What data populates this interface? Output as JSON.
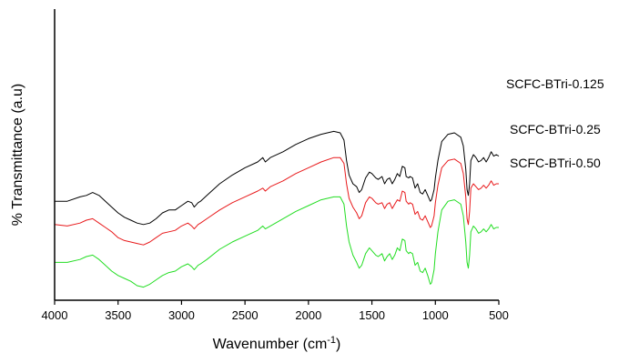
{
  "chart_data": {
    "type": "line",
    "title": "",
    "xlabel": "Wavenumber (cm",
    "xlabel_sup": "-1",
    "xlabel_tail": ")",
    "ylabel": "% Transmittance (a.u)",
    "xlim": [
      4000,
      500
    ],
    "x_reversed": true,
    "x_ticks": [
      4000,
      3500,
      3000,
      2500,
      2000,
      1500,
      1000,
      500
    ],
    "x_tick_labels": [
      "4000",
      "3500",
      "3000",
      "2500",
      "2000",
      "1500",
      "1000",
      "500"
    ],
    "y_ticks_shown": false,
    "grid": false,
    "series": [
      {
        "name": "SCFC-BTri-0.125",
        "color": "#000000",
        "points": [
          [
            4000,
            0.66
          ],
          [
            3900,
            0.66
          ],
          [
            3800,
            0.645
          ],
          [
            3750,
            0.64
          ],
          [
            3700,
            0.63
          ],
          [
            3650,
            0.64
          ],
          [
            3600,
            0.66
          ],
          [
            3550,
            0.68
          ],
          [
            3500,
            0.7
          ],
          [
            3450,
            0.715
          ],
          [
            3400,
            0.725
          ],
          [
            3350,
            0.735
          ],
          [
            3300,
            0.74
          ],
          [
            3250,
            0.735
          ],
          [
            3200,
            0.72
          ],
          [
            3150,
            0.7
          ],
          [
            3100,
            0.69
          ],
          [
            3050,
            0.69
          ],
          [
            3000,
            0.675
          ],
          [
            2950,
            0.66
          ],
          [
            2920,
            0.665
          ],
          [
            2900,
            0.68
          ],
          [
            2870,
            0.665
          ],
          [
            2850,
            0.66
          ],
          [
            2800,
            0.64
          ],
          [
            2700,
            0.6
          ],
          [
            2600,
            0.57
          ],
          [
            2500,
            0.545
          ],
          [
            2400,
            0.525
          ],
          [
            2360,
            0.51
          ],
          [
            2340,
            0.525
          ],
          [
            2300,
            0.51
          ],
          [
            2200,
            0.49
          ],
          [
            2100,
            0.465
          ],
          [
            2000,
            0.445
          ],
          [
            1900,
            0.43
          ],
          [
            1800,
            0.42
          ],
          [
            1750,
            0.425
          ],
          [
            1720,
            0.45
          ],
          [
            1700,
            0.52
          ],
          [
            1680,
            0.57
          ],
          [
            1650,
            0.6
          ],
          [
            1620,
            0.61
          ],
          [
            1600,
            0.63
          ],
          [
            1580,
            0.62
          ],
          [
            1550,
            0.58
          ],
          [
            1520,
            0.56
          ],
          [
            1500,
            0.565
          ],
          [
            1470,
            0.58
          ],
          [
            1450,
            0.585
          ],
          [
            1420,
            0.575
          ],
          [
            1400,
            0.6
          ],
          [
            1380,
            0.585
          ],
          [
            1360,
            0.58
          ],
          [
            1340,
            0.6
          ],
          [
            1320,
            0.585
          ],
          [
            1300,
            0.565
          ],
          [
            1280,
            0.575
          ],
          [
            1260,
            0.54
          ],
          [
            1240,
            0.545
          ],
          [
            1230,
            0.575
          ],
          [
            1210,
            0.58
          ],
          [
            1200,
            0.575
          ],
          [
            1180,
            0.58
          ],
          [
            1160,
            0.615
          ],
          [
            1140,
            0.6
          ],
          [
            1120,
            0.63
          ],
          [
            1100,
            0.635
          ],
          [
            1080,
            0.62
          ],
          [
            1060,
            0.64
          ],
          [
            1040,
            0.66
          ],
          [
            1030,
            0.655
          ],
          [
            1010,
            0.62
          ],
          [
            1000,
            0.58
          ],
          [
            980,
            0.52
          ],
          [
            950,
            0.455
          ],
          [
            900,
            0.43
          ],
          [
            850,
            0.425
          ],
          [
            800,
            0.44
          ],
          [
            780,
            0.47
          ],
          [
            760,
            0.55
          ],
          [
            750,
            0.62
          ],
          [
            740,
            0.64
          ],
          [
            730,
            0.6
          ],
          [
            720,
            0.52
          ],
          [
            700,
            0.5
          ],
          [
            680,
            0.51
          ],
          [
            660,
            0.525
          ],
          [
            640,
            0.52
          ],
          [
            620,
            0.51
          ],
          [
            600,
            0.525
          ],
          [
            580,
            0.51
          ],
          [
            560,
            0.49
          ],
          [
            540,
            0.505
          ],
          [
            520,
            0.5
          ],
          [
            500,
            0.505
          ]
        ]
      },
      {
        "name": "SCFC-BTri-0.25",
        "color": "#e8191b",
        "points": [
          [
            4000,
            0.74
          ],
          [
            3900,
            0.745
          ],
          [
            3800,
            0.735
          ],
          [
            3750,
            0.725
          ],
          [
            3700,
            0.72
          ],
          [
            3650,
            0.735
          ],
          [
            3600,
            0.75
          ],
          [
            3550,
            0.765
          ],
          [
            3500,
            0.785
          ],
          [
            3450,
            0.795
          ],
          [
            3400,
            0.8
          ],
          [
            3350,
            0.805
          ],
          [
            3300,
            0.81
          ],
          [
            3250,
            0.8
          ],
          [
            3200,
            0.785
          ],
          [
            3150,
            0.77
          ],
          [
            3100,
            0.765
          ],
          [
            3050,
            0.76
          ],
          [
            3000,
            0.745
          ],
          [
            2950,
            0.735
          ],
          [
            2920,
            0.745
          ],
          [
            2900,
            0.755
          ],
          [
            2870,
            0.74
          ],
          [
            2850,
            0.735
          ],
          [
            2800,
            0.72
          ],
          [
            2700,
            0.69
          ],
          [
            2600,
            0.665
          ],
          [
            2500,
            0.645
          ],
          [
            2400,
            0.625
          ],
          [
            2360,
            0.615
          ],
          [
            2340,
            0.625
          ],
          [
            2300,
            0.61
          ],
          [
            2200,
            0.59
          ],
          [
            2100,
            0.565
          ],
          [
            2000,
            0.545
          ],
          [
            1900,
            0.525
          ],
          [
            1800,
            0.51
          ],
          [
            1750,
            0.51
          ],
          [
            1720,
            0.53
          ],
          [
            1700,
            0.6
          ],
          [
            1680,
            0.65
          ],
          [
            1650,
            0.68
          ],
          [
            1620,
            0.7
          ],
          [
            1600,
            0.72
          ],
          [
            1580,
            0.71
          ],
          [
            1550,
            0.665
          ],
          [
            1520,
            0.645
          ],
          [
            1500,
            0.65
          ],
          [
            1470,
            0.665
          ],
          [
            1450,
            0.67
          ],
          [
            1420,
            0.665
          ],
          [
            1400,
            0.685
          ],
          [
            1380,
            0.67
          ],
          [
            1360,
            0.665
          ],
          [
            1340,
            0.685
          ],
          [
            1320,
            0.67
          ],
          [
            1300,
            0.655
          ],
          [
            1280,
            0.66
          ],
          [
            1260,
            0.625
          ],
          [
            1240,
            0.63
          ],
          [
            1230,
            0.66
          ],
          [
            1210,
            0.67
          ],
          [
            1200,
            0.665
          ],
          [
            1180,
            0.67
          ],
          [
            1160,
            0.705
          ],
          [
            1140,
            0.695
          ],
          [
            1120,
            0.72
          ],
          [
            1100,
            0.725
          ],
          [
            1080,
            0.71
          ],
          [
            1060,
            0.73
          ],
          [
            1040,
            0.75
          ],
          [
            1030,
            0.745
          ],
          [
            1010,
            0.71
          ],
          [
            1000,
            0.665
          ],
          [
            980,
            0.605
          ],
          [
            950,
            0.545
          ],
          [
            900,
            0.52
          ],
          [
            850,
            0.515
          ],
          [
            800,
            0.53
          ],
          [
            780,
            0.565
          ],
          [
            760,
            0.645
          ],
          [
            750,
            0.72
          ],
          [
            740,
            0.74
          ],
          [
            730,
            0.695
          ],
          [
            720,
            0.615
          ],
          [
            700,
            0.6
          ],
          [
            680,
            0.61
          ],
          [
            660,
            0.62
          ],
          [
            640,
            0.615
          ],
          [
            620,
            0.605
          ],
          [
            600,
            0.615
          ],
          [
            580,
            0.605
          ],
          [
            560,
            0.59
          ],
          [
            540,
            0.605
          ],
          [
            520,
            0.6
          ],
          [
            500,
            0.6
          ]
        ]
      },
      {
        "name": "SCFC-BTri-0.50",
        "color": "#22dd22",
        "points": [
          [
            4000,
            0.87
          ],
          [
            3900,
            0.87
          ],
          [
            3800,
            0.86
          ],
          [
            3750,
            0.85
          ],
          [
            3700,
            0.845
          ],
          [
            3650,
            0.86
          ],
          [
            3600,
            0.88
          ],
          [
            3550,
            0.9
          ],
          [
            3500,
            0.915
          ],
          [
            3450,
            0.925
          ],
          [
            3400,
            0.935
          ],
          [
            3350,
            0.95
          ],
          [
            3300,
            0.955
          ],
          [
            3250,
            0.945
          ],
          [
            3200,
            0.93
          ],
          [
            3150,
            0.915
          ],
          [
            3100,
            0.905
          ],
          [
            3050,
            0.9
          ],
          [
            3000,
            0.885
          ],
          [
            2950,
            0.875
          ],
          [
            2920,
            0.885
          ],
          [
            2900,
            0.895
          ],
          [
            2870,
            0.88
          ],
          [
            2850,
            0.875
          ],
          [
            2800,
            0.86
          ],
          [
            2700,
            0.825
          ],
          [
            2600,
            0.8
          ],
          [
            2500,
            0.78
          ],
          [
            2400,
            0.76
          ],
          [
            2360,
            0.745
          ],
          [
            2340,
            0.755
          ],
          [
            2300,
            0.745
          ],
          [
            2200,
            0.72
          ],
          [
            2100,
            0.695
          ],
          [
            2000,
            0.675
          ],
          [
            1900,
            0.655
          ],
          [
            1800,
            0.645
          ],
          [
            1750,
            0.645
          ],
          [
            1720,
            0.67
          ],
          [
            1700,
            0.745
          ],
          [
            1680,
            0.8
          ],
          [
            1650,
            0.845
          ],
          [
            1620,
            0.87
          ],
          [
            1600,
            0.89
          ],
          [
            1580,
            0.88
          ],
          [
            1550,
            0.84
          ],
          [
            1520,
            0.82
          ],
          [
            1500,
            0.83
          ],
          [
            1470,
            0.845
          ],
          [
            1450,
            0.85
          ],
          [
            1420,
            0.84
          ],
          [
            1400,
            0.865
          ],
          [
            1380,
            0.85
          ],
          [
            1360,
            0.84
          ],
          [
            1340,
            0.86
          ],
          [
            1320,
            0.845
          ],
          [
            1300,
            0.82
          ],
          [
            1280,
            0.83
          ],
          [
            1260,
            0.79
          ],
          [
            1240,
            0.795
          ],
          [
            1230,
            0.83
          ],
          [
            1210,
            0.84
          ],
          [
            1200,
            0.835
          ],
          [
            1180,
            0.84
          ],
          [
            1160,
            0.88
          ],
          [
            1140,
            0.87
          ],
          [
            1120,
            0.9
          ],
          [
            1100,
            0.905
          ],
          [
            1080,
            0.89
          ],
          [
            1060,
            0.915
          ],
          [
            1040,
            0.945
          ],
          [
            1030,
            0.94
          ],
          [
            1010,
            0.895
          ],
          [
            1000,
            0.84
          ],
          [
            980,
            0.765
          ],
          [
            950,
            0.69
          ],
          [
            900,
            0.66
          ],
          [
            850,
            0.655
          ],
          [
            800,
            0.67
          ],
          [
            780,
            0.71
          ],
          [
            760,
            0.8
          ],
          [
            750,
            0.87
          ],
          [
            740,
            0.89
          ],
          [
            730,
            0.845
          ],
          [
            720,
            0.765
          ],
          [
            700,
            0.745
          ],
          [
            680,
            0.755
          ],
          [
            660,
            0.77
          ],
          [
            640,
            0.765
          ],
          [
            620,
            0.755
          ],
          [
            600,
            0.765
          ],
          [
            580,
            0.755
          ],
          [
            560,
            0.74
          ],
          [
            540,
            0.755
          ],
          [
            520,
            0.75
          ],
          [
            500,
            0.75
          ]
        ]
      }
    ]
  }
}
